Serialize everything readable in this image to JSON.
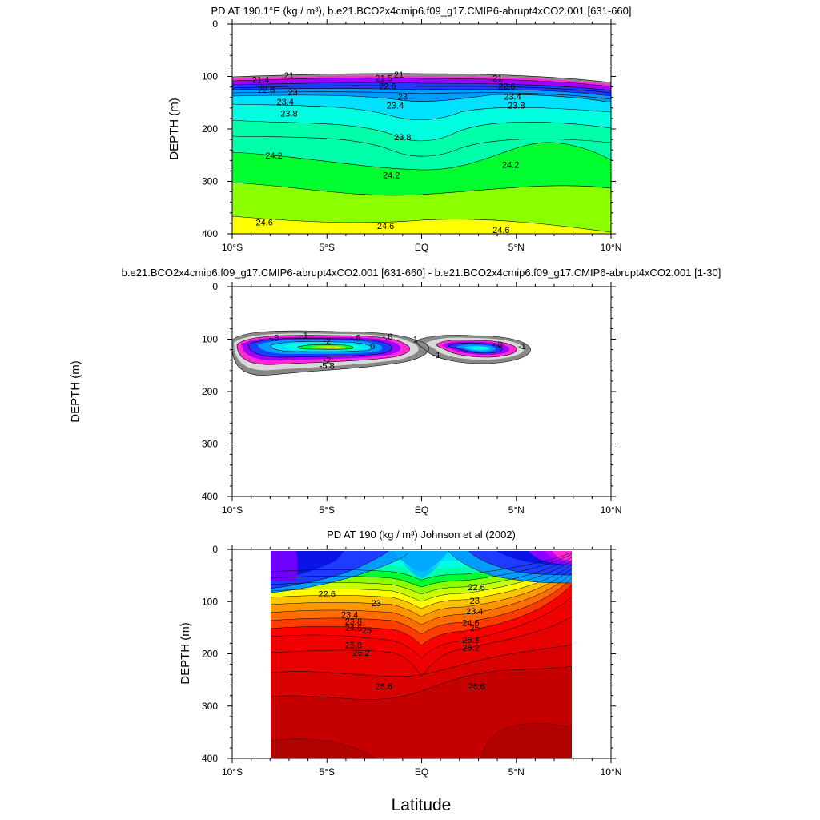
{
  "chart_data": [
    {
      "type": "contour",
      "title": "PD AT 190.1°E (kg / m³), b.e21.BCO2x4cmip6.f09_g17.CMIP6-abrupt4xCO2.001 [631-660]",
      "ylabel": "DEPTH (m)",
      "xlim": [
        -10,
        10
      ],
      "ylim": [
        0,
        400
      ],
      "y_inverted": true,
      "xticks": [
        "10°S",
        "5°S",
        "EQ",
        "5°N",
        "10°N"
      ],
      "yticks": [
        "0",
        "100",
        "200",
        "300",
        "400"
      ],
      "contour_labels": [
        {
          "text": "21",
          "lat": -7.0,
          "depth": 98
        },
        {
          "text": "21.4",
          "lat": -8.5,
          "depth": 106
        },
        {
          "text": "22.6",
          "lat": -8.2,
          "depth": 125
        },
        {
          "text": "23",
          "lat": -6.8,
          "depth": 130
        },
        {
          "text": "23.4",
          "lat": -7.2,
          "depth": 148
        },
        {
          "text": "23.8",
          "lat": -7.0,
          "depth": 170
        },
        {
          "text": "21",
          "lat": -1.2,
          "depth": 96
        },
        {
          "text": "21.5",
          "lat": -2.0,
          "depth": 103
        },
        {
          "text": "22.6",
          "lat": -1.8,
          "depth": 118
        },
        {
          "text": "23",
          "lat": -1.0,
          "depth": 138
        },
        {
          "text": "23.4",
          "lat": -1.4,
          "depth": 155
        },
        {
          "text": "23.8",
          "lat": -1.0,
          "depth": 215
        },
        {
          "text": "21",
          "lat": 4.0,
          "depth": 103
        },
        {
          "text": "22.6",
          "lat": 4.5,
          "depth": 118
        },
        {
          "text": "23.4",
          "lat": 4.8,
          "depth": 138
        },
        {
          "text": "23.8",
          "lat": 5.0,
          "depth": 155
        },
        {
          "text": "24.2",
          "lat": -7.8,
          "depth": 250
        },
        {
          "text": "24.2",
          "lat": -1.6,
          "depth": 288
        },
        {
          "text": "24.2",
          "lat": 4.7,
          "depth": 268
        },
        {
          "text": "24.6",
          "lat": -8.3,
          "depth": 378
        },
        {
          "text": "24.6",
          "lat": -1.9,
          "depth": 385
        },
        {
          "text": "24.6",
          "lat": 4.2,
          "depth": 392
        }
      ]
    },
    {
      "type": "contour",
      "title": "b.e21.BCO2x4cmip6.f09_g17.CMIP6-abrupt4xCO2.001 [631-660] - b.e21.BCO2x4cmip6.f09_g17.CMIP6-abrupt4xCO2.001 [1-30]",
      "ylabel": "DEPTH (m)",
      "xlim": [
        -10,
        10
      ],
      "ylim": [
        0,
        400
      ],
      "y_inverted": true,
      "xticks": [
        "10°S",
        "5°S",
        "EQ",
        "5°N",
        "10°N"
      ],
      "yticks": [
        "0",
        "100",
        "200",
        "300",
        "400"
      ],
      "contour_labels": [
        {
          "text": "-.8",
          "lat": -7.8,
          "depth": 97
        },
        {
          "text": "-1",
          "lat": -6.2,
          "depth": 92
        },
        {
          "text": "-2",
          "lat": -5.0,
          "depth": 103
        },
        {
          "text": "-.6",
          "lat": -3.5,
          "depth": 97
        },
        {
          "text": "-.8",
          "lat": -1.8,
          "depth": 95
        },
        {
          "text": "-1",
          "lat": -0.4,
          "depth": 100
        },
        {
          "text": "0",
          "lat": -2.6,
          "depth": 113
        },
        {
          "text": "-2",
          "lat": -5.0,
          "depth": 140
        },
        {
          "text": "-5.8",
          "lat": -5.0,
          "depth": 150
        },
        {
          "text": "-1",
          "lat": 0.8,
          "depth": 130
        },
        {
          "text": "-.8",
          "lat": 4.0,
          "depth": 110
        },
        {
          "text": "-1",
          "lat": 5.3,
          "depth": 113
        }
      ]
    },
    {
      "type": "contour",
      "title": "PD AT 190 (kg / m³) Johnson et al (2002)",
      "ylabel": "DEPTH (m)",
      "xlabel": "Latitude",
      "xlim": [
        -10,
        10
      ],
      "ylim": [
        0,
        400
      ],
      "y_inverted": true,
      "data_lat_range": [
        -8,
        8
      ],
      "xticks": [
        "10°S",
        "5°S",
        "EQ",
        "5°N",
        "10°N"
      ],
      "yticks": [
        "0",
        "100",
        "200",
        "300",
        "400"
      ],
      "contour_labels": [
        {
          "text": "22.6",
          "lat": -5.0,
          "depth": 85
        },
        {
          "text": "23",
          "lat": -2.4,
          "depth": 103
        },
        {
          "text": "23.4",
          "lat": -3.8,
          "depth": 125
        },
        {
          "text": "23.8",
          "lat": -3.6,
          "depth": 138
        },
        {
          "text": "24.6",
          "lat": -3.6,
          "depth": 150
        },
        {
          "text": "25",
          "lat": -2.9,
          "depth": 155
        },
        {
          "text": "25.8",
          "lat": -3.6,
          "depth": 183
        },
        {
          "text": "26.2",
          "lat": -3.2,
          "depth": 198
        },
        {
          "text": "26.6",
          "lat": -2.0,
          "depth": 262
        },
        {
          "text": "22.6",
          "lat": 2.9,
          "depth": 72
        },
        {
          "text": "23",
          "lat": 2.8,
          "depth": 98
        },
        {
          "text": "23.4",
          "lat": 2.8,
          "depth": 118
        },
        {
          "text": "24.6",
          "lat": 2.6,
          "depth": 140
        },
        {
          "text": "25",
          "lat": 2.8,
          "depth": 150
        },
        {
          "text": "25.8",
          "lat": 2.6,
          "depth": 173
        },
        {
          "text": "26.2",
          "lat": 2.6,
          "depth": 188
        },
        {
          "text": "26.6",
          "lat": 2.9,
          "depth": 262
        }
      ]
    }
  ]
}
